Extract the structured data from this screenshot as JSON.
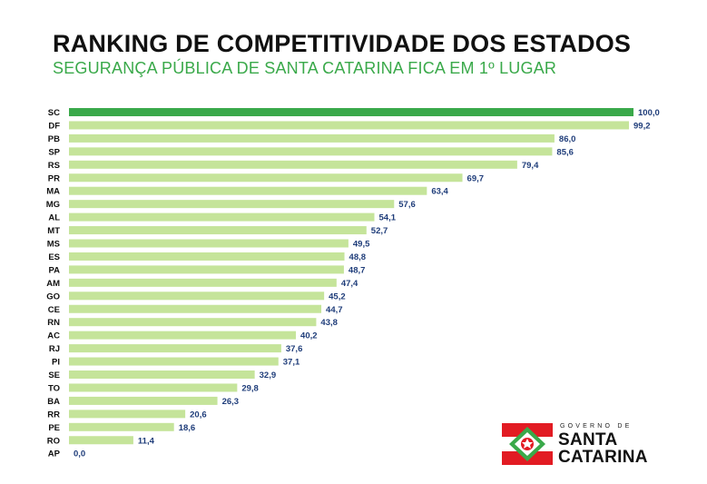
{
  "header": {
    "title": "RANKING DE COMPETITIVIDADE DOS ESTADOS",
    "subtitle": "SEGURANÇA PÚBLICA DE SANTA CATARINA FICA EM 1º LUGAR"
  },
  "logo": {
    "small": "GOVERNO DE",
    "line1": "SANTA",
    "line2": "CATARINA"
  },
  "colors": {
    "highlight_bar": "#3aa94a",
    "bar": "#c5e49a",
    "value_label": "#1f3d7a",
    "category_label": "#111111",
    "title": "#111111",
    "subtitle": "#3aa94a",
    "flag_red": "#e21b23",
    "flag_green": "#3aa94a"
  },
  "chart_data": {
    "type": "bar",
    "orientation": "horizontal",
    "title": "RANKING DE COMPETITIVIDADE DOS ESTADOS",
    "subtitle": "SEGURANÇA PÚBLICA DE SANTA CATARINA FICA EM 1º LUGAR",
    "categories": [
      "SC",
      "DF",
      "PB",
      "SP",
      "RS",
      "PR",
      "MA",
      "MG",
      "AL",
      "MT",
      "MS",
      "ES",
      "PA",
      "AM",
      "GO",
      "CE",
      "RN",
      "AC",
      "RJ",
      "PI",
      "SE",
      "TO",
      "BA",
      "RR",
      "PE",
      "RO",
      "AP"
    ],
    "values": [
      100.0,
      99.2,
      86.0,
      85.6,
      79.4,
      69.7,
      63.4,
      57.6,
      54.1,
      52.7,
      49.5,
      48.8,
      48.7,
      47.4,
      45.2,
      44.7,
      43.8,
      40.2,
      37.6,
      37.1,
      32.9,
      29.8,
      26.3,
      20.6,
      18.6,
      11.4,
      0.0
    ],
    "value_labels": [
      "100,0",
      "99,2",
      "86,0",
      "85,6",
      "79,4",
      "69,7",
      "63,4",
      "57,6",
      "54,1",
      "52,7",
      "49,5",
      "48,8",
      "48,7",
      "47,4",
      "45,2",
      "44,7",
      "43,8",
      "40,2",
      "37,6",
      "37,1",
      "32,9",
      "29,8",
      "26,3",
      "20,6",
      "18,6",
      "11,4",
      "0,0"
    ],
    "highlight_index": 0,
    "xlim": [
      0,
      100
    ],
    "grid": false,
    "legend": "none",
    "xlabel": "",
    "ylabel": ""
  }
}
